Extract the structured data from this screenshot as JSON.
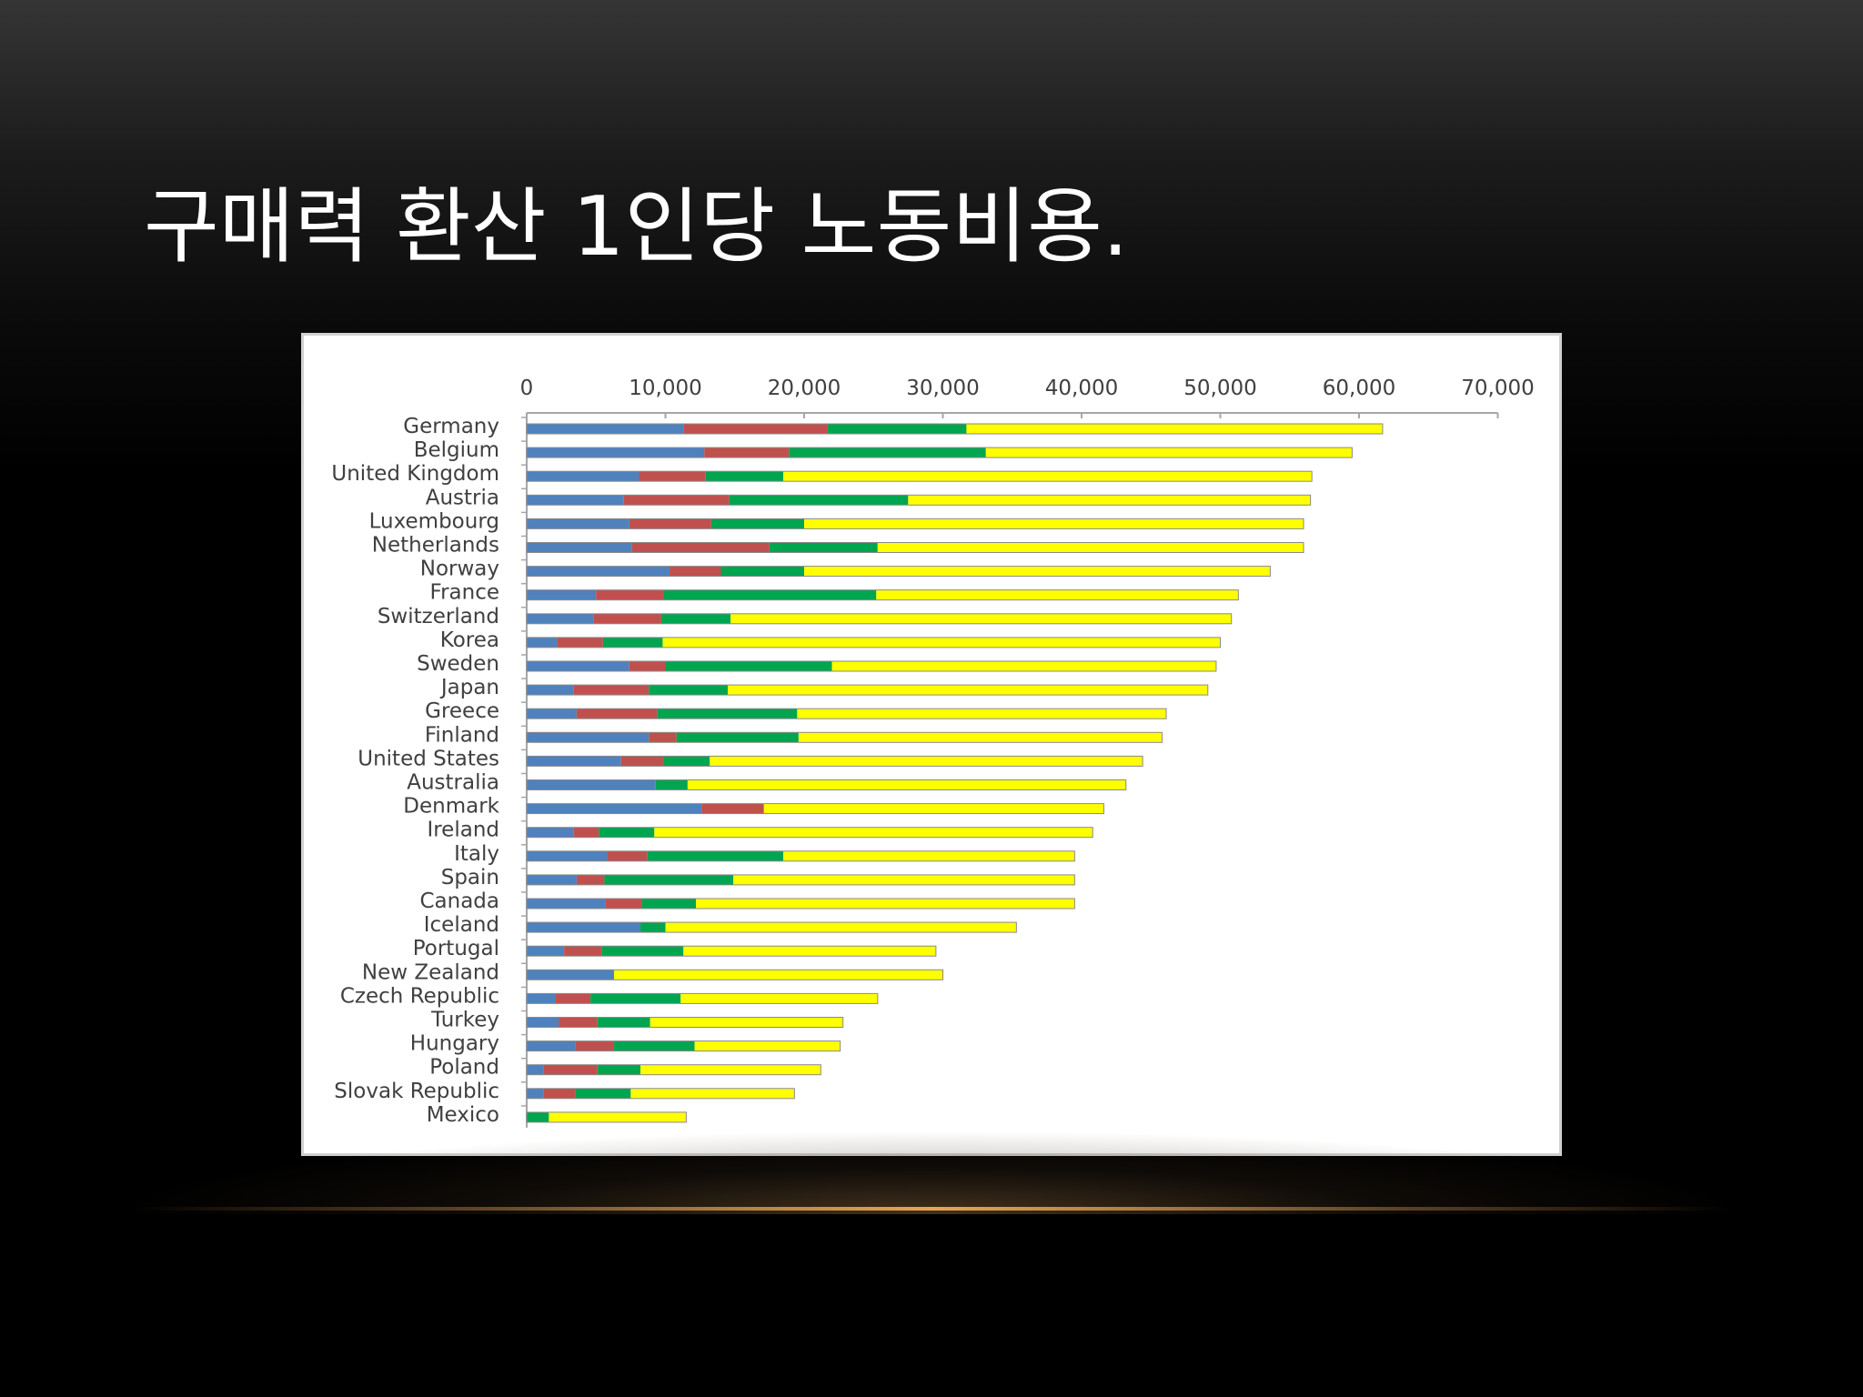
{
  "slide": {
    "title": "구매력 환산 1인당 노동비용."
  },
  "colors": {
    "background": "#000000",
    "title_text": "#ffffff",
    "series": [
      "#4f81bd",
      "#c0504d",
      "#00a550",
      "#ffff00"
    ]
  },
  "chart_data": {
    "type": "bar",
    "orientation": "horizontal",
    "stacked": true,
    "title": "",
    "xlabel": "",
    "ylabel": "",
    "xlim": [
      0,
      70000
    ],
    "x_ticks": [
      0,
      10000,
      20000,
      30000,
      40000,
      50000,
      60000,
      70000
    ],
    "x_tick_labels": [
      "0",
      "10,000",
      "20,000",
      "30,000",
      "40,000",
      "50,000",
      "60,000",
      "70,000"
    ],
    "x_axis_position": "top",
    "grid": false,
    "legend": "none",
    "categories": [
      "Germany",
      "Belgium",
      "United Kingdom",
      "Austria",
      "Luxembourg",
      "Netherlands",
      "Norway",
      "France",
      "Switzerland",
      "Korea",
      "Sweden",
      "Japan",
      "Greece",
      "Finland",
      "United States",
      "Australia",
      "Denmark",
      "Ireland",
      "Italy",
      "Spain",
      "Canada",
      "Iceland",
      "Portugal",
      "New Zealand",
      "Czech Republic",
      "Turkey",
      "Hungary",
      "Poland",
      "Slovak Republic",
      "Mexico"
    ],
    "series": [
      {
        "values": [
          11300,
          12800,
          8100,
          7000,
          7400,
          7600,
          10300,
          5000,
          4800,
          2200,
          7400,
          3400,
          3600,
          8800,
          6800,
          9300,
          12600,
          3400,
          5800,
          3600,
          5700,
          8200,
          2700,
          6300,
          2100,
          2300,
          3500,
          1200,
          1200,
          0
        ]
      },
      {
        "values": [
          10400,
          6100,
          4800,
          7600,
          5900,
          9900,
          3700,
          4900,
          4900,
          3300,
          2600,
          5400,
          5800,
          2000,
          3100,
          0,
          4500,
          1800,
          2900,
          2000,
          2600,
          0,
          2700,
          0,
          2500,
          2800,
          2800,
          3900,
          2300,
          0
        ]
      },
      {
        "values": [
          10000,
          14200,
          5600,
          12900,
          6700,
          7800,
          6000,
          15300,
          5000,
          4300,
          12000,
          5700,
          10100,
          8800,
          3300,
          2300,
          0,
          4000,
          9800,
          9300,
          3900,
          1800,
          5900,
          0,
          6500,
          3800,
          5800,
          3100,
          4000,
          1600
        ]
      },
      {
        "values": [
          30000,
          26400,
          38100,
          29000,
          36000,
          30700,
          33600,
          26100,
          36100,
          40200,
          27700,
          34600,
          26600,
          26200,
          31200,
          31600,
          24500,
          31600,
          21000,
          24600,
          27300,
          25300,
          18200,
          23700,
          14200,
          13900,
          10500,
          13000,
          11800,
          9900
        ]
      }
    ]
  }
}
